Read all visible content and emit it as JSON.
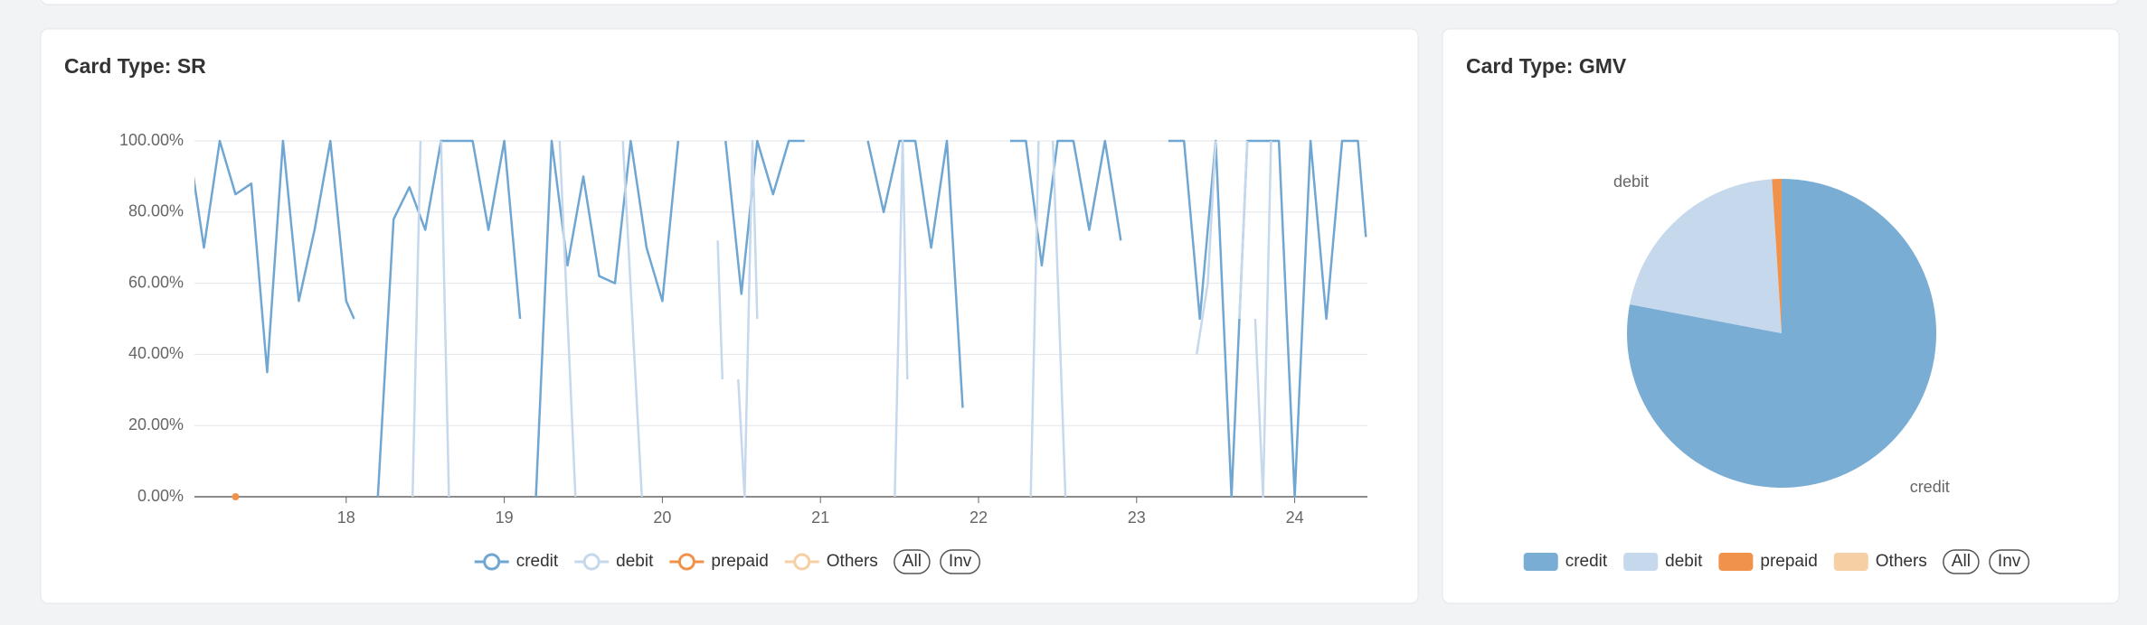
{
  "chart_data": [
    {
      "type": "line",
      "title": "Card Type: SR",
      "xlim": [
        17.04,
        24.46
      ],
      "xticks": [
        18,
        19,
        20,
        21,
        22,
        23,
        24
      ],
      "ylim": [
        0,
        100
      ],
      "yticks": [
        {
          "value": 0,
          "label": "0.00%"
        },
        {
          "value": 20,
          "label": "20.00%"
        },
        {
          "value": 40,
          "label": "40.00%"
        },
        {
          "value": 60,
          "label": "60.00%"
        },
        {
          "value": 80,
          "label": "80.00%"
        },
        {
          "value": 100,
          "label": "100.00%"
        }
      ],
      "grid": true,
      "legend": "bottom",
      "legend_controls": [
        "All",
        "Inv"
      ],
      "series": [
        {
          "name": "credit",
          "color": "#6fa6d2",
          "x": [
            17.0,
            17.1,
            17.2,
            17.3,
            17.4,
            17.5,
            17.6,
            17.7,
            17.8,
            17.9,
            18.0,
            18.05,
            18.1,
            18.2,
            18.3,
            18.4,
            18.5,
            18.6,
            18.7,
            18.8,
            18.9,
            19.0,
            19.1,
            19.15,
            19.2,
            19.3,
            19.4,
            19.5,
            19.6,
            19.7,
            19.8,
            19.9,
            20.0,
            20.1,
            20.2,
            20.4,
            20.5,
            20.6,
            20.7,
            20.8,
            20.9,
            21.0,
            21.3,
            21.4,
            21.5,
            21.6,
            21.7,
            21.8,
            21.9,
            22.0,
            22.2,
            22.3,
            22.4,
            22.5,
            22.6,
            22.7,
            22.8,
            22.9,
            23.0,
            23.2,
            23.3,
            23.4,
            23.5,
            23.6,
            23.7,
            23.8,
            23.9,
            24.0,
            24.1,
            24.2,
            24.3,
            24.4,
            24.45
          ],
          "values": [
            100,
            70,
            100,
            85,
            88,
            35,
            100,
            55,
            75,
            100,
            55,
            50,
            null,
            0,
            78,
            87,
            75,
            100,
            100,
            100,
            75,
            100,
            50,
            null,
            0,
            100,
            65,
            90,
            62,
            60,
            100,
            70,
            55,
            100,
            null,
            100,
            57,
            100,
            85,
            100,
            100,
            null,
            100,
            80,
            100,
            100,
            70,
            100,
            25,
            null,
            100,
            100,
            65,
            100,
            100,
            75,
            100,
            72,
            null,
            100,
            100,
            50,
            100,
            0,
            100,
            100,
            100,
            0,
            100,
            50,
            100,
            100,
            73
          ]
        },
        {
          "name": "debit",
          "color": "#c5d8ec",
          "x": [
            18.42,
            18.47,
            18.55,
            18.6,
            18.65,
            19.3,
            19.35,
            19.45,
            19.7,
            19.75,
            19.87,
            20.3,
            20.35,
            20.38,
            20.45,
            20.48,
            20.52,
            20.57,
            20.6,
            21.4,
            21.47,
            21.52,
            21.55,
            22.3,
            22.33,
            22.38,
            22.45,
            22.47,
            22.55,
            23.35,
            23.38,
            23.45,
            23.5,
            23.6,
            23.65,
            23.7,
            23.72,
            23.75,
            23.8,
            23.85
          ],
          "values": [
            0,
            100,
            null,
            100,
            0,
            null,
            100,
            0,
            null,
            100,
            0,
            null,
            72,
            33,
            null,
            33,
            0,
            100,
            50,
            null,
            0,
            100,
            33,
            null,
            0,
            100,
            null,
            100,
            0,
            null,
            40,
            60,
            100,
            null,
            50,
            100,
            null,
            50,
            0,
            100
          ]
        },
        {
          "name": "prepaid",
          "color": "#f0924c",
          "x": [
            17.3
          ],
          "values": [
            0
          ]
        },
        {
          "name": "Others",
          "color": "#f7cfa5",
          "x": [],
          "values": []
        }
      ]
    },
    {
      "type": "pie",
      "title": "Card Type: GMV",
      "categories": [
        "credit",
        "debit",
        "prepaid",
        "Others"
      ],
      "values": [
        78,
        21,
        1,
        0
      ],
      "colors": [
        "#7aadd4",
        "#c5d8ec",
        "#f0924c",
        "#f7cfa5"
      ],
      "legend": "bottom",
      "legend_controls": [
        "All",
        "Inv"
      ]
    }
  ]
}
